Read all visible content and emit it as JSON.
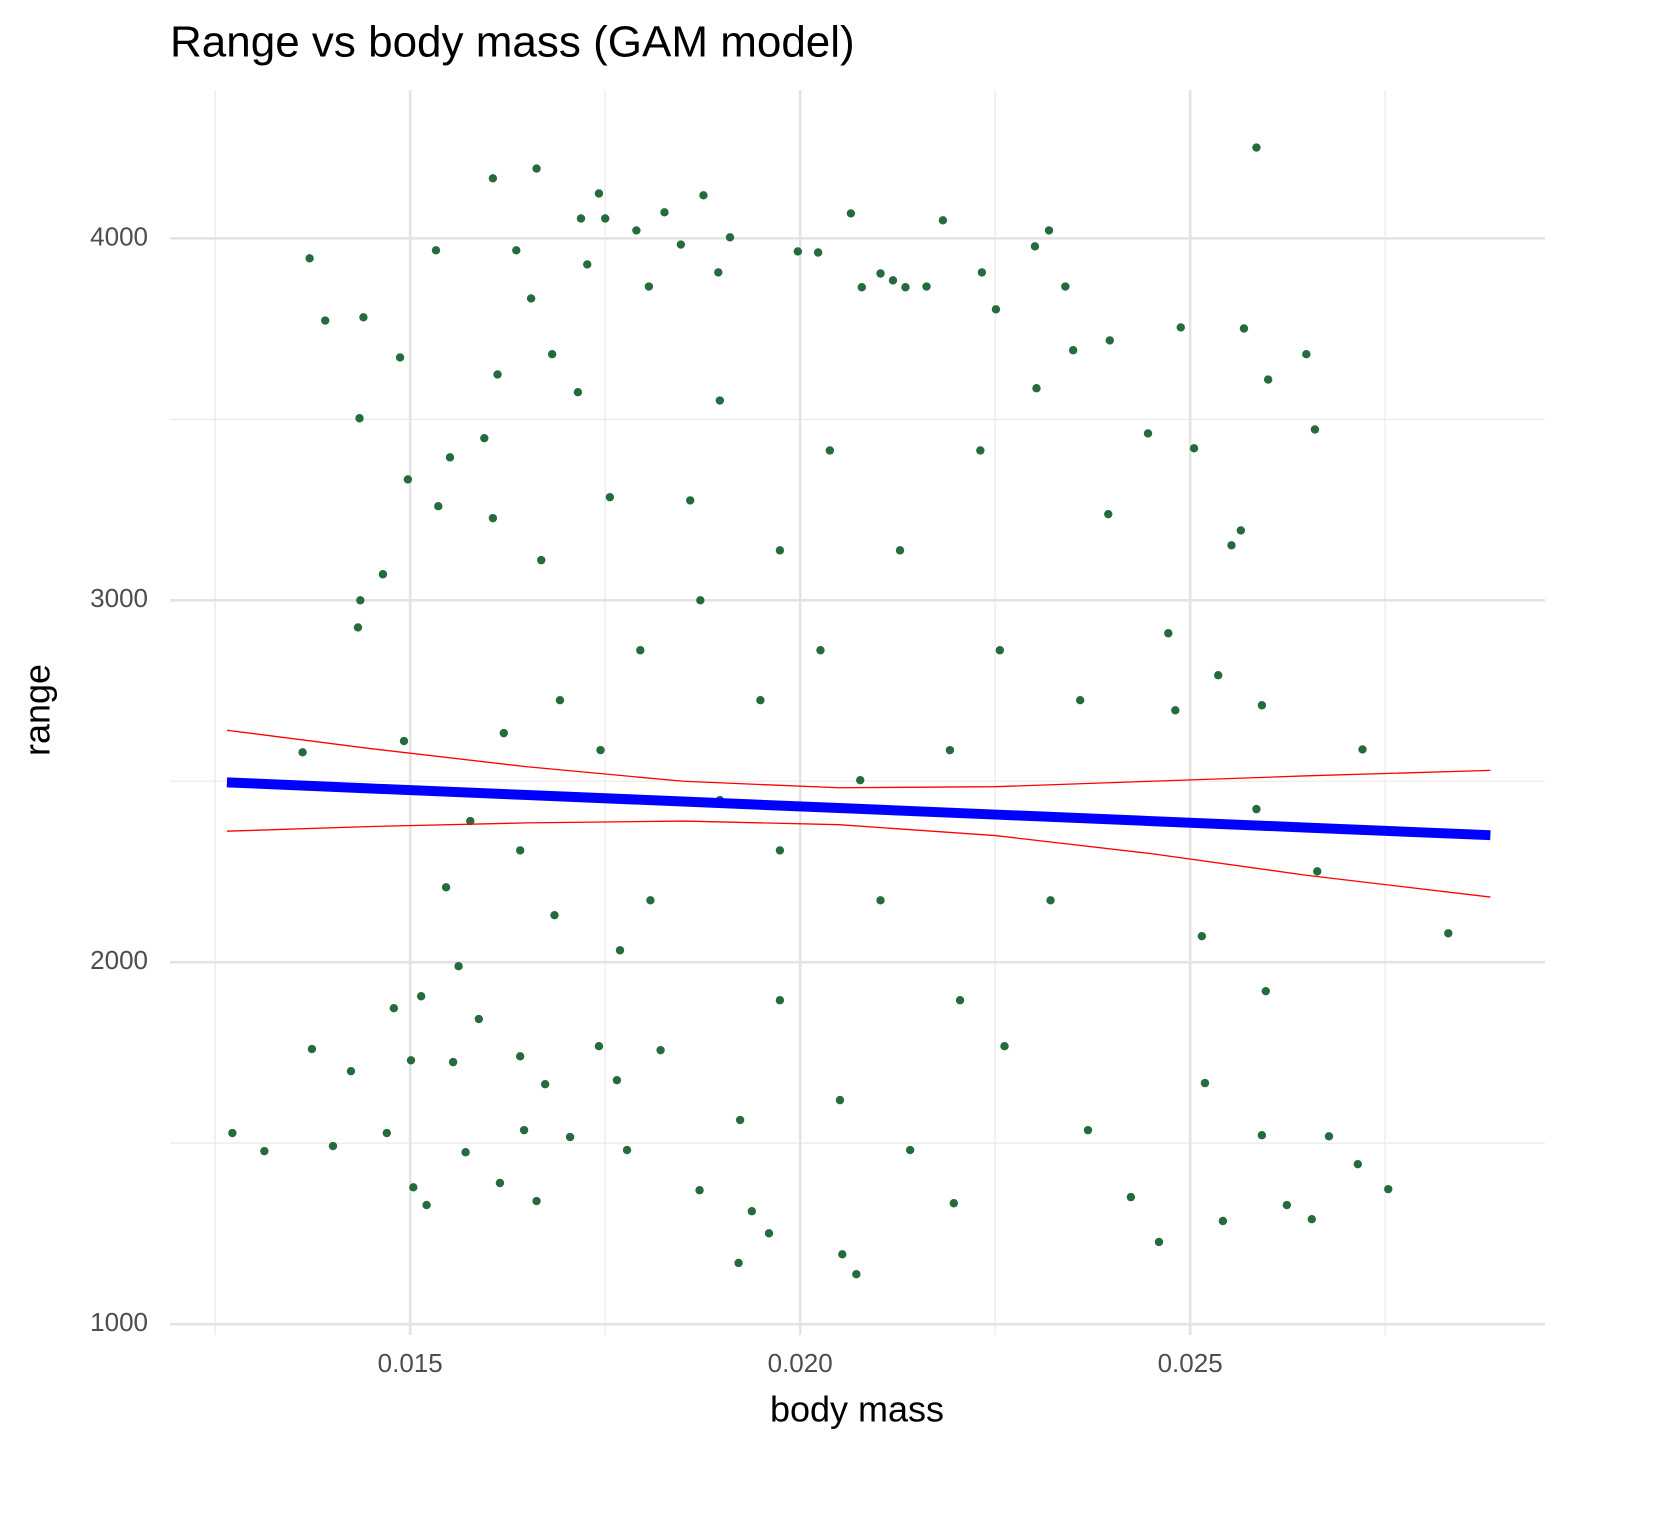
{
  "chart_data": {
    "type": "scatter",
    "title": "Range vs body mass (GAM model)",
    "x_label": "body mass",
    "y_label": "range",
    "xlim": [
      0.01192,
      0.02955
    ],
    "ylim": [
      970,
      4410
    ],
    "xticks": [
      0.015,
      {
        "value": 0.02,
        "label": "0.020"
      },
      0.025
    ],
    "yticks": [
      1000,
      2000,
      3000,
      4000
    ],
    "xminor": [
      0.0125,
      0.0175,
      0.0225,
      0.0275
    ],
    "yminor": [
      1500,
      2500,
      3500
    ],
    "grid": true,
    "points": {
      "color": "#256b3d",
      "x": [
        0.01272,
        0.01313,
        0.01362,
        0.01371,
        0.01374,
        0.01391,
        0.01401,
        0.01424,
        0.01435,
        0.01436,
        0.01433,
        0.0144,
        0.01465,
        0.0147,
        0.01479,
        0.01487,
        0.01492,
        0.01497,
        0.01501,
        0.01504,
        0.01514,
        0.01521,
        0.01533,
        0.01536,
        0.01546,
        0.01551,
        0.01555,
        0.01562,
        0.01571,
        0.01577,
        0.01588,
        0.01595,
        0.01606,
        0.01612,
        0.01606,
        0.01615,
        0.0162,
        0.01636,
        0.01641,
        0.01646,
        0.01655,
        0.01662,
        0.01662,
        0.01668,
        0.01673,
        0.01682,
        0.01685,
        0.01705,
        0.01715,
        0.01719,
        0.01727,
        0.01742,
        0.01742,
        0.0175,
        0.01756,
        0.01765,
        0.01778,
        0.0179,
        0.01806,
        0.01826,
        0.01847,
        0.01871,
        0.01876,
        0.01895,
        0.0191,
        0.01921,
        0.01938,
        0.0196,
        0.01997,
        0.02023,
        0.02054,
        0.02065,
        0.02072,
        0.02079,
        0.02103,
        0.02119,
        0.02135,
        0.02162,
        0.02183,
        0.02197,
        0.02233,
        0.02251,
        0.02262,
        0.02301,
        0.02319,
        0.02303,
        0.0234,
        0.0235,
        0.02369,
        0.02397,
        0.02395,
        0.02424,
        0.02446,
        0.0246,
        0.02472,
        0.02481,
        0.02488,
        0.02505,
        0.02515,
        0.02519,
        0.02536,
        0.02542,
        0.02553,
        0.02565,
        0.02569,
        0.02585,
        0.02585,
        0.02592,
        0.02597,
        0.026,
        0.02592,
        0.02624,
        0.02649,
        0.02656,
        0.0266,
        0.02663,
        0.02678,
        0.02715,
        0.02721,
        0.02754,
        0.02831,
        0.01897,
        0.01808,
        0.01949,
        0.01974,
        0.02026,
        0.02103,
        0.01872,
        0.01744,
        0.02192,
        0.02051,
        0.01821,
        0.01897,
        0.02038,
        0.02128,
        0.01692,
        0.02256,
        0.01769,
        0.01974,
        0.02077,
        0.01923,
        0.01859,
        0.02205,
        0.02321,
        0.01641,
        0.01795,
        0.02141,
        0.01974,
        0.02231,
        0.02359
      ],
      "y": [
        1528,
        1478,
        2580,
        3945,
        1760,
        3773,
        1492,
        1699,
        3503,
        3000,
        2925,
        3782,
        3072,
        1528,
        1873,
        3671,
        2611,
        3334,
        1729,
        1378,
        1906,
        1329,
        3967,
        3260,
        2207,
        3395,
        1724,
        1989,
        1475,
        2390,
        1843,
        3448,
        4166,
        3624,
        3227,
        1390,
        2633,
        3967,
        1740,
        1536,
        3834,
        4193,
        1340,
        3111,
        1663,
        3680,
        2130,
        1517,
        3575,
        4055,
        3928,
        4124,
        1768,
        4055,
        3285,
        1674,
        1481,
        4022,
        3867,
        4072,
        3983,
        1370,
        4119,
        3906,
        4003,
        1169,
        1312,
        1251,
        3964,
        3961,
        1193,
        4069,
        1138,
        3865,
        3903,
        3884,
        3865,
        3867,
        4050,
        1334,
        3906,
        3804,
        1768,
        3978,
        4022,
        3586,
        3867,
        3691,
        1536,
        3718,
        3238,
        1351,
        3461,
        1227,
        2909,
        2696,
        3754,
        3420,
        2072,
        1666,
        2793,
        1285,
        3152,
        3193,
        3751,
        4251,
        2423,
        1522,
        1920,
        3610,
        2710,
        1329,
        3680,
        1290,
        3472,
        2251,
        1519,
        1442,
        2588,
        1373,
        2080,
        2448,
        2171,
        2724,
        1895,
        2862,
        2171,
        3000,
        2586,
        2586,
        1619,
        1757,
        3552,
        3414,
        3138,
        2724,
        2862,
        2033,
        2309,
        2503,
        1564,
        3276,
        1895,
        2171,
        2309,
        2862,
        1481,
        3138,
        3414,
        2724
      ]
    },
    "fit": {
      "color": "#0000ff",
      "x": [
        0.01265,
        0.0145,
        0.0165,
        0.0185,
        0.0205,
        0.0225,
        0.0245,
        0.0265,
        0.02885
      ],
      "y": [
        2497,
        2480,
        2462,
        2444,
        2426,
        2408,
        2390,
        2372,
        2351
      ]
    },
    "ci_upper": {
      "color": "#ff0000",
      "x": [
        0.01265,
        0.0145,
        0.0165,
        0.0185,
        0.0205,
        0.0225,
        0.0245,
        0.0265,
        0.02885
      ],
      "y": [
        2641,
        2590,
        2540,
        2500,
        2482,
        2485,
        2500,
        2515,
        2530
      ]
    },
    "ci_lower": {
      "color": "#ff0000",
      "x": [
        0.01265,
        0.0145,
        0.0165,
        0.0185,
        0.0205,
        0.0225,
        0.0245,
        0.0265,
        0.02885
      ],
      "y": [
        2362,
        2375,
        2385,
        2390,
        2380,
        2350,
        2300,
        2240,
        2180
      ]
    }
  }
}
